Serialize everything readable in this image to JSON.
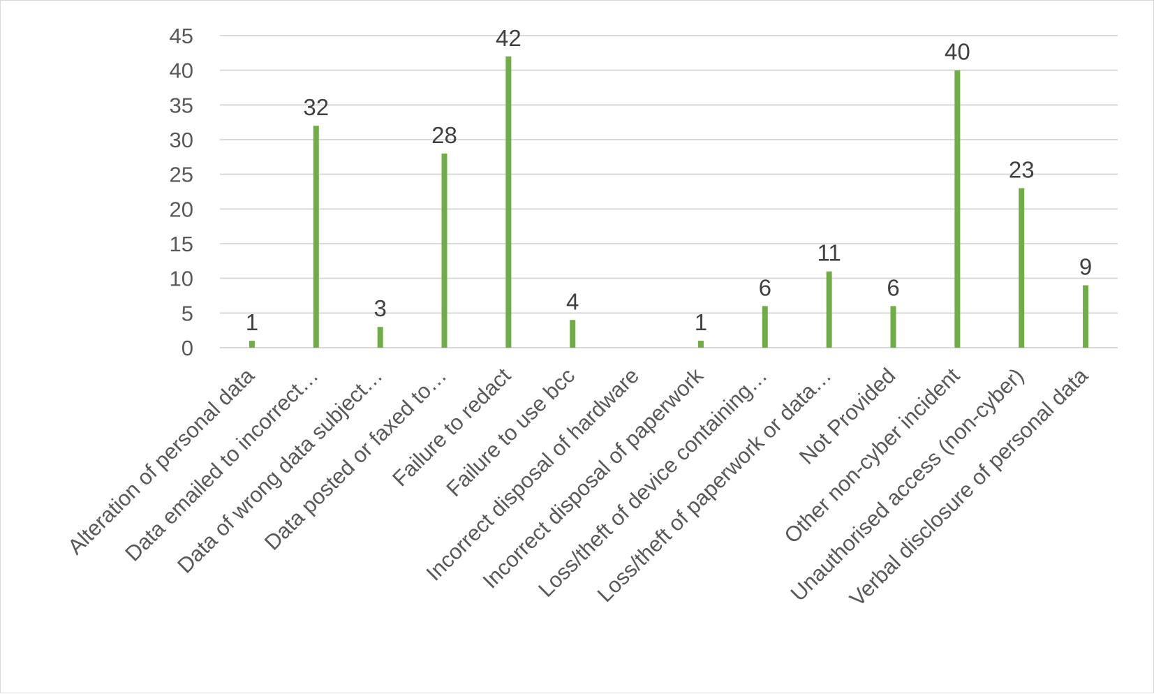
{
  "chart_data": {
    "type": "bar",
    "title": "",
    "xlabel": "",
    "ylabel": "",
    "ylim": [
      0,
      45
    ],
    "yticks": [
      0,
      5,
      10,
      15,
      20,
      25,
      30,
      35,
      40,
      45
    ],
    "grid": true,
    "legend": "none",
    "bar_color": "#70ad47",
    "categories": [
      "Alteration of personal data",
      "Data emailed to incorrect…",
      "Data of wrong data subject…",
      "Data posted or faxed to…",
      "Failure to redact",
      "Failure to use bcc",
      "Incorrect disposal of hardware",
      "Incorrect disposal of paperwork",
      "Loss/theft of device containing…",
      "Loss/theft of paperwork or data…",
      "Not Provided",
      "Other non-cyber incident",
      "Unauthorised access (non-cyber)",
      "Verbal disclosure of personal data"
    ],
    "values": [
      1,
      32,
      3,
      28,
      42,
      4,
      null,
      1,
      6,
      11,
      6,
      40,
      23,
      9
    ],
    "data_labels": [
      "1",
      "32",
      "3",
      "28",
      "42",
      "4",
      "",
      "1",
      "6",
      "11",
      "6",
      "40",
      "23",
      "9"
    ]
  }
}
